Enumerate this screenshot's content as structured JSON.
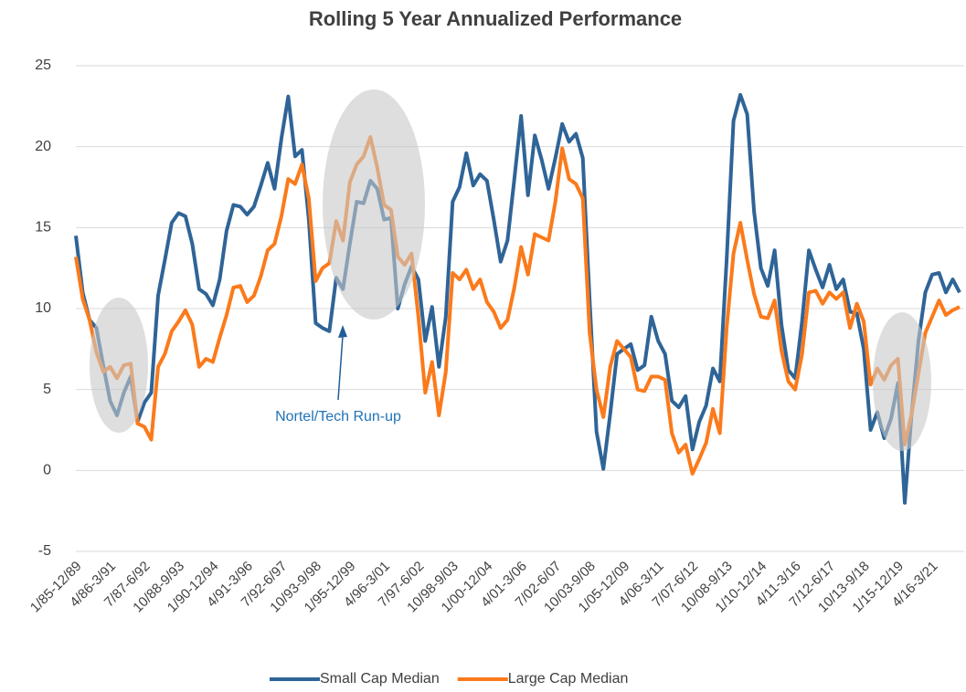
{
  "chart_data": {
    "type": "line",
    "title": "Rolling 5 Year Annualized Performance",
    "categories": [
      "1/85-12/89",
      null,
      null,
      null,
      null,
      "4/86-3/91",
      null,
      null,
      null,
      null,
      "7/87-6/92",
      null,
      null,
      null,
      null,
      "10/88-9/93",
      null,
      null,
      null,
      null,
      "1/90-12/94",
      null,
      null,
      null,
      null,
      "4/91-3/96",
      null,
      null,
      null,
      null,
      "7/92-6/97",
      null,
      null,
      null,
      null,
      "10/93-9/98",
      null,
      null,
      null,
      null,
      "1/95-12/99",
      null,
      null,
      null,
      null,
      "4/96-3/01",
      null,
      null,
      null,
      null,
      "7/97-6/02",
      null,
      null,
      null,
      null,
      "10/98-9/03",
      null,
      null,
      null,
      null,
      "1/00-12/04",
      null,
      null,
      null,
      null,
      "4/01-3/06",
      null,
      null,
      null,
      null,
      "7/02-6/07",
      null,
      null,
      null,
      null,
      "10/03-9/08",
      null,
      null,
      null,
      null,
      "1/05-12/09",
      null,
      null,
      null,
      null,
      "4/06-3/11",
      null,
      null,
      null,
      null,
      "7/07-6/12",
      null,
      null,
      null,
      null,
      "10/08-9/13",
      null,
      null,
      null,
      null,
      "1/10-12/14",
      null,
      null,
      null,
      null,
      "4/11-3/16",
      null,
      null,
      null,
      null,
      "7/12-6/17",
      null,
      null,
      null,
      null,
      "10/13-9/18",
      null,
      null,
      null,
      null,
      "1/15-12/19",
      null,
      null,
      null,
      null,
      "4/16-3/21",
      null,
      null,
      null,
      null
    ],
    "series": [
      {
        "name": "Small Cap Median",
        "color": "#2f6497",
        "values": [
          14.5,
          11,
          9.3,
          8.8,
          6.5,
          4.3,
          3.4,
          4.8,
          5.8,
          3.0,
          4.2,
          4.8,
          10.8,
          13,
          15.3,
          15.9,
          15.7,
          14,
          11.2,
          10.9,
          10.2,
          11.8,
          14.8,
          16.4,
          16.3,
          15.8,
          16.3,
          17.6,
          19,
          17.4,
          20.5,
          23.1,
          19.4,
          19.8,
          15.5,
          9.1,
          8.8,
          8.6,
          11.9,
          11.2,
          14,
          16.6,
          16.5,
          17.9,
          17.4,
          15.5,
          15.6,
          10,
          11.5,
          12.6,
          11.8,
          8,
          10.1,
          6.4,
          9.5,
          16.6,
          17.5,
          19.6,
          17.6,
          18.3,
          17.9,
          15.5,
          12.9,
          14.2,
          18,
          21.9,
          17,
          20.7,
          19.2,
          17.4,
          19.3,
          21.4,
          20.3,
          20.8,
          19.3,
          10.5,
          2.4,
          0.1,
          3.5,
          7.2,
          7.5,
          7.8,
          6.2,
          6.5,
          9.5,
          8,
          7.2,
          4.3,
          3.9,
          4.6,
          1.3,
          3,
          4,
          6.3,
          5.5,
          13,
          21.6,
          23.2,
          22,
          16,
          12.5,
          11.4,
          13.6,
          9,
          6.2,
          5.7,
          9.2,
          13.6,
          12.4,
          11.3,
          12.7,
          11.2,
          11.8,
          9.8,
          9.7,
          7.5,
          2.5,
          3.6,
          2,
          3.2,
          5.4,
          -2,
          3.5,
          8,
          11,
          12.1,
          12.2,
          11,
          11.8,
          11
        ]
      },
      {
        "name": "Large Cap Median",
        "color": "#fb7a1b",
        "values": [
          13.2,
          10.6,
          9.3,
          7.3,
          6.1,
          6.4,
          5.7,
          6.5,
          6.6,
          2.9,
          2.7,
          1.9,
          6.4,
          7.2,
          8.6,
          9.2,
          9.9,
          9,
          6.4,
          6.9,
          6.7,
          8.2,
          9.6,
          11.3,
          11.4,
          10.4,
          10.8,
          12,
          13.6,
          14,
          15.7,
          18,
          17.7,
          18.9,
          16.8,
          11.7,
          12.5,
          12.8,
          15.4,
          14.2,
          17.8,
          18.9,
          19.4,
          20.6,
          18.7,
          16.4,
          16.1,
          13.2,
          12.7,
          13.4,
          9.5,
          4.8,
          6.7,
          3.4,
          6.1,
          12.2,
          11.8,
          12.4,
          11.2,
          11.8,
          10.4,
          9.8,
          8.8,
          9.3,
          11.3,
          13.8,
          12.1,
          14.6,
          14.4,
          14.2,
          16.6,
          19.9,
          18,
          17.7,
          16.8,
          8.5,
          5,
          3.3,
          6.4,
          8,
          7.5,
          7,
          5,
          4.9,
          5.8,
          5.8,
          5.6,
          2.3,
          1.1,
          1.6,
          -0.2,
          0.7,
          1.7,
          3.8,
          2.3,
          8.8,
          13.4,
          15.3,
          13,
          10.9,
          9.5,
          9.4,
          10.5,
          7.4,
          5.5,
          5,
          7.2,
          11,
          11.1,
          10.3,
          11,
          10.6,
          11,
          8.8,
          10.3,
          9.2,
          5.3,
          6.3,
          5.6,
          6.5,
          6.9,
          1.6,
          3.5,
          6,
          8.5,
          9.5,
          10.5,
          9.6,
          9.9,
          10.1
        ]
      }
    ],
    "ylim": [
      -5,
      25
    ],
    "yticks": [
      -5,
      0,
      5,
      10,
      15,
      20,
      25
    ],
    "grid": true,
    "legend": "bottom",
    "annotation": "Nortel/Tech Run-up"
  }
}
